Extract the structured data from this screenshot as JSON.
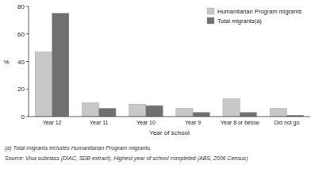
{
  "chart_data": {
    "type": "bar",
    "categories": [
      "Year 12",
      "Year 11",
      "Year 10",
      "Year 9",
      "Year 8 or below",
      "Did not go"
    ],
    "series": [
      {
        "name": "Humanitarian Program migrants",
        "color": "#c8c8c8",
        "values": [
          47,
          10,
          9,
          6,
          13,
          6
        ]
      },
      {
        "name": "Total migrants(a)",
        "color": "#707070",
        "values": [
          75,
          6,
          8,
          3,
          3,
          1
        ]
      }
    ],
    "xlabel": "Year of school",
    "ylabel": "%",
    "ylim": [
      0,
      80
    ],
    "yticks": [
      0,
      20,
      40,
      60,
      80
    ],
    "grid": false,
    "legend": "upper right",
    "annotations": [
      "(a) Total migrants includes Humanitarian Program migrants.",
      "Source: Visa subclass (DIAC, SDB extract), Highest year of school completed (ABS, 2006 Census)"
    ]
  }
}
